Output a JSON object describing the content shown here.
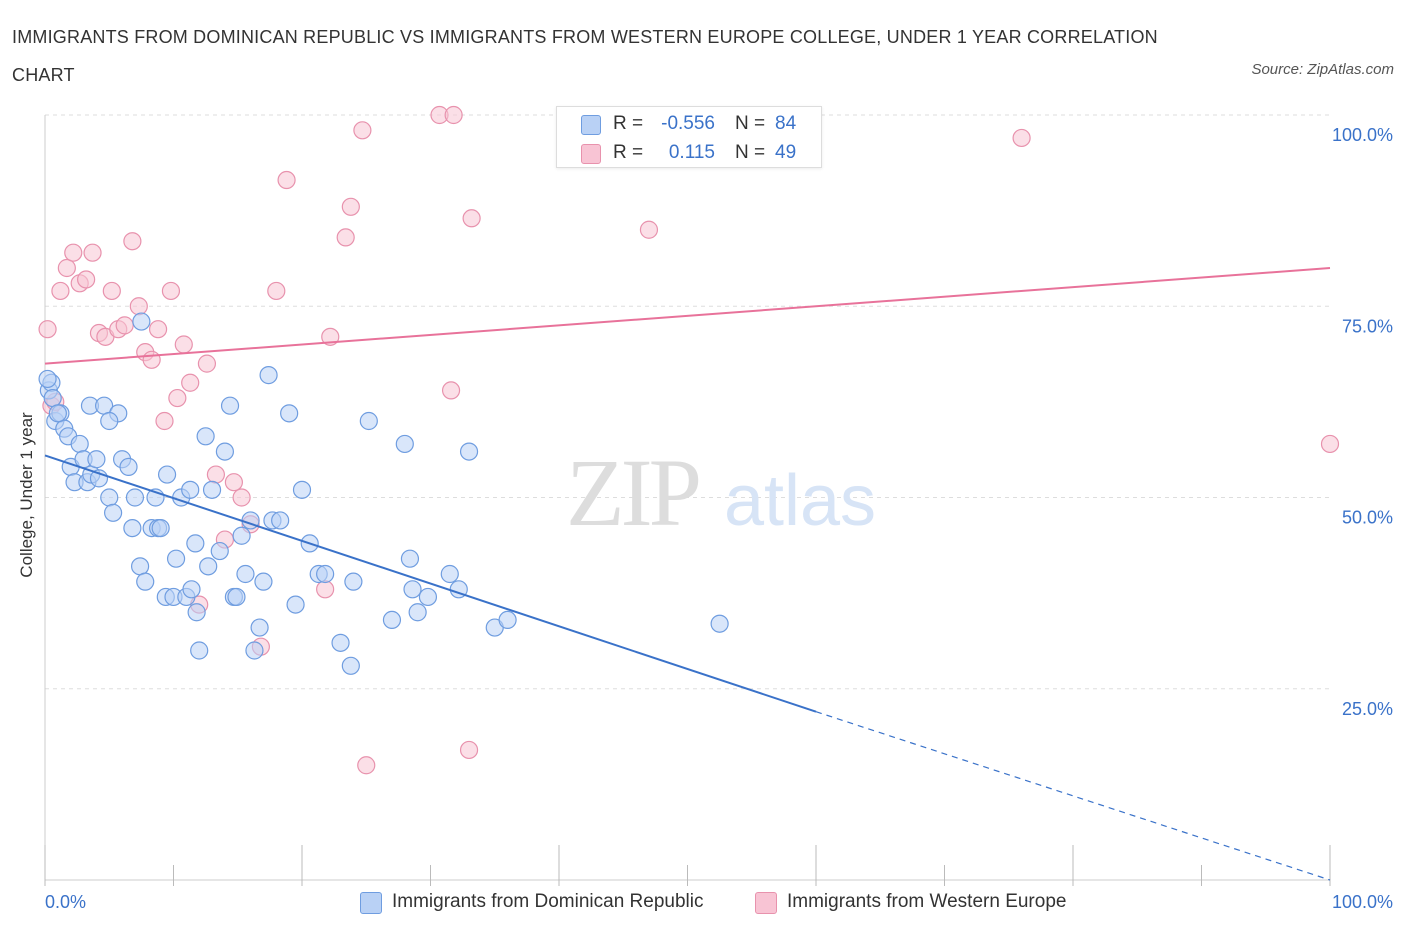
{
  "title": "IMMIGRANTS FROM DOMINICAN REPUBLIC VS IMMIGRANTS FROM WESTERN EUROPE COLLEGE, UNDER 1 YEAR CORRELATION CHART",
  "source": "Source: ZipAtlas.com",
  "watermark": {
    "zip": "ZIP",
    "atlas": "atlas"
  },
  "colors": {
    "blue": "#3a72c9",
    "pink": "#e8729a",
    "blue_fill": "#b9d1f5",
    "pink_fill": "#f8c4d4"
  },
  "legend": {
    "blue": {
      "r_label": "R =",
      "r_value": "-0.556",
      "n_label": "N =",
      "n_value": "84"
    },
    "pink": {
      "r_label": "R =",
      "r_value": "0.115",
      "n_label": "N =",
      "n_value": "49"
    }
  },
  "chart_data": {
    "type": "scatter",
    "title": "IMMIGRANTS FROM DOMINICAN REPUBLIC VS IMMIGRANTS FROM WESTERN EUROPE COLLEGE, UNDER 1 YEAR CORRELATION CHART",
    "xlabel": "",
    "ylabel": "College, Under 1 year",
    "xlim": [
      0,
      100
    ],
    "ylim": [
      0,
      100
    ],
    "x_tick_labels": [
      "0.0%",
      "100.0%"
    ],
    "y_tick_labels": [
      "25.0%",
      "50.0%",
      "75.0%",
      "100.0%"
    ],
    "y_tick_values": [
      25,
      50,
      75,
      100
    ],
    "grid": true,
    "series": [
      {
        "name": "Immigrants from Dominican Republic",
        "color": "#3a72c9",
        "trend": {
          "x0": 0,
          "y0": 55.5,
          "x1": 60,
          "y1": 22,
          "dashed_to_x": 100,
          "dashed_to_y": 0
        },
        "points": [
          [
            0.3,
            64
          ],
          [
            0.5,
            65
          ],
          [
            0.8,
            60
          ],
          [
            1.2,
            61
          ],
          [
            1.5,
            59
          ],
          [
            1.8,
            58
          ],
          [
            2,
            54
          ],
          [
            2.3,
            52
          ],
          [
            2.7,
            57
          ],
          [
            3,
            55
          ],
          [
            3.3,
            52
          ],
          [
            3.6,
            53
          ],
          [
            4,
            55
          ],
          [
            4.2,
            52.5
          ],
          [
            3.5,
            62
          ],
          [
            4.6,
            62
          ],
          [
            5,
            50
          ],
          [
            5.3,
            48
          ],
          [
            5.7,
            61
          ],
          [
            6,
            55
          ],
          [
            6.5,
            54
          ],
          [
            6.8,
            46
          ],
          [
            7,
            50
          ],
          [
            5,
            60
          ],
          [
            7.5,
            73
          ],
          [
            7.4,
            41
          ],
          [
            7.8,
            39
          ],
          [
            8.3,
            46
          ],
          [
            8.6,
            50
          ],
          [
            8.8,
            46
          ],
          [
            9,
            46
          ],
          [
            9.5,
            53
          ],
          [
            9.4,
            37
          ],
          [
            10,
            37
          ],
          [
            10.2,
            42
          ],
          [
            10.6,
            50
          ],
          [
            11,
            37
          ],
          [
            11.3,
            51
          ],
          [
            11.4,
            38
          ],
          [
            11.8,
            35
          ],
          [
            12,
            30
          ],
          [
            11.7,
            44
          ],
          [
            12.5,
            58
          ],
          [
            12.7,
            41
          ],
          [
            13,
            51
          ],
          [
            13.6,
            43
          ],
          [
            14,
            56
          ],
          [
            14.4,
            62
          ],
          [
            14.7,
            37
          ],
          [
            14.9,
            37
          ],
          [
            15.3,
            45
          ],
          [
            15.6,
            40
          ],
          [
            16,
            47
          ],
          [
            16.3,
            30
          ],
          [
            16.7,
            33
          ],
          [
            17,
            39
          ],
          [
            17.4,
            66
          ],
          [
            17.7,
            47
          ],
          [
            18.3,
            47
          ],
          [
            19,
            61
          ],
          [
            19.5,
            36
          ],
          [
            20,
            51
          ],
          [
            20.6,
            44
          ],
          [
            21.3,
            40
          ],
          [
            21.8,
            40
          ],
          [
            23,
            31
          ],
          [
            23.8,
            28
          ],
          [
            24,
            39
          ],
          [
            25.2,
            60
          ],
          [
            27,
            34
          ],
          [
            28,
            57
          ],
          [
            28.4,
            42
          ],
          [
            28.6,
            38
          ],
          [
            29,
            35
          ],
          [
            29.8,
            37
          ],
          [
            31.5,
            40
          ],
          [
            32.2,
            38
          ],
          [
            33,
            56
          ],
          [
            35,
            33
          ],
          [
            36,
            34
          ],
          [
            52.5,
            33.5
          ],
          [
            0.2,
            65.5
          ],
          [
            0.6,
            63
          ],
          [
            1,
            61
          ]
        ]
      },
      {
        "name": "Immigrants from Western Europe",
        "color": "#e8729a",
        "trend": {
          "x0": 0,
          "y0": 67.5,
          "x1": 100,
          "y1": 80
        },
        "points": [
          [
            0.2,
            72
          ],
          [
            0.5,
            62
          ],
          [
            1.2,
            77
          ],
          [
            1.7,
            80
          ],
          [
            2.2,
            82
          ],
          [
            2.7,
            78
          ],
          [
            3.2,
            78.5
          ],
          [
            3.7,
            82
          ],
          [
            4.2,
            71.5
          ],
          [
            4.7,
            71
          ],
          [
            5.2,
            77
          ],
          [
            5.7,
            72
          ],
          [
            6.2,
            72.5
          ],
          [
            6.8,
            83.5
          ],
          [
            7.3,
            75
          ],
          [
            7.8,
            69
          ],
          [
            8.3,
            68
          ],
          [
            8.8,
            72
          ],
          [
            9.3,
            60
          ],
          [
            9.8,
            77
          ],
          [
            10.3,
            63
          ],
          [
            10.8,
            70
          ],
          [
            11.3,
            65
          ],
          [
            12,
            36
          ],
          [
            12.6,
            67.5
          ],
          [
            13.3,
            53
          ],
          [
            14,
            44.5
          ],
          [
            14.7,
            52
          ],
          [
            15.3,
            50
          ],
          [
            16,
            46.5
          ],
          [
            16.8,
            30.5
          ],
          [
            18,
            77
          ],
          [
            18.8,
            91.5
          ],
          [
            21.8,
            38
          ],
          [
            22.2,
            71
          ],
          [
            23.4,
            84
          ],
          [
            24.7,
            98
          ],
          [
            25,
            15
          ],
          [
            30.7,
            100
          ],
          [
            31.8,
            100
          ],
          [
            31.6,
            64
          ],
          [
            33,
            17
          ],
          [
            33.2,
            86.5
          ],
          [
            47,
            85
          ],
          [
            47.5,
            99
          ],
          [
            76,
            97
          ],
          [
            100,
            57
          ],
          [
            23.8,
            88
          ],
          [
            0.8,
            62.5
          ]
        ]
      }
    ]
  }
}
